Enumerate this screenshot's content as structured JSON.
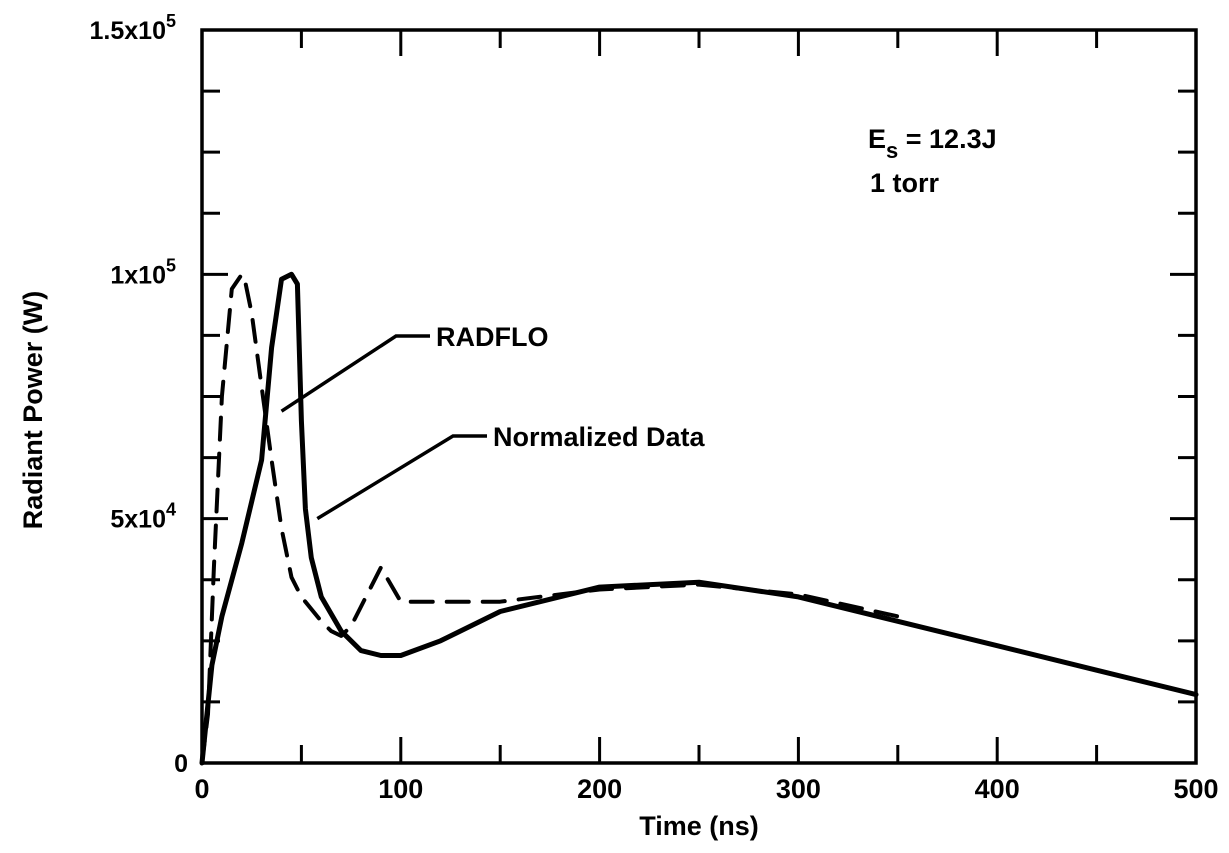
{
  "chart_data": {
    "type": "line",
    "xlabel": "Time (ns)",
    "ylabel": "Radiant Power (W)",
    "xlim": [
      0,
      500
    ],
    "ylim": [
      0,
      150000
    ],
    "grid": false,
    "x_ticks": [
      0,
      100,
      200,
      300,
      400,
      500
    ],
    "x_tick_labels": [
      "0",
      "100",
      "200",
      "300",
      "400",
      "500"
    ],
    "y_ticks": [
      0,
      50000,
      100000,
      150000
    ],
    "y_tick_labels": [
      {
        "mantissa": "0",
        "exp": ""
      },
      {
        "mantissa": "5x10",
        "exp": "4"
      },
      {
        "mantissa": "1x10",
        "exp": "5"
      },
      {
        "mantissa": "1.5x10",
        "exp": "5"
      }
    ],
    "annotations": {
      "energy_main": "E",
      "energy_sub": "s",
      "energy_rest": " = 12.3J",
      "pressure": "1 torr"
    },
    "series": [
      {
        "name": "RADFLO",
        "style": "solid",
        "x": [
          0,
          5,
          10,
          20,
          30,
          35,
          40,
          45,
          48,
          50,
          52,
          55,
          60,
          70,
          80,
          90,
          100,
          120,
          150,
          200,
          250,
          300,
          350,
          400,
          450,
          500
        ],
        "y": [
          0,
          20000,
          30000,
          45000,
          62000,
          85000,
          99000,
          100000,
          98000,
          70000,
          52000,
          42000,
          34000,
          27000,
          23000,
          22000,
          22000,
          25000,
          31000,
          36000,
          37000,
          34000,
          29000,
          24000,
          19000,
          14000
        ]
      },
      {
        "name": "Normalized Data",
        "style": "dashed",
        "x": [
          0,
          3,
          6,
          10,
          15,
          20,
          22,
          25,
          30,
          35,
          40,
          45,
          50,
          60,
          65,
          70,
          75,
          80,
          90,
          100,
          150,
          200,
          250,
          300,
          350
        ],
        "y": [
          0,
          10000,
          40000,
          75000,
          97000,
          100000,
          98000,
          92000,
          77000,
          62000,
          48000,
          38000,
          34000,
          29000,
          27000,
          26000,
          28000,
          32000,
          40000,
          33000,
          33000,
          35500,
          36500,
          34500,
          30000
        ]
      }
    ],
    "labels": [
      {
        "series": "RADFLO",
        "text": "RADFLO"
      },
      {
        "series": "Normalized Data",
        "text": "Normalized Data"
      }
    ]
  }
}
